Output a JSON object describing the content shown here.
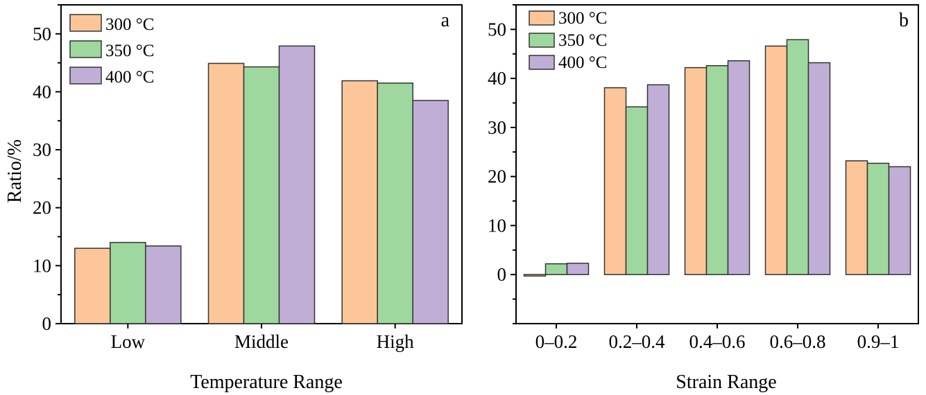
{
  "colors": {
    "s300": "#FDC699",
    "s350": "#9ED89E",
    "s400": "#C1AED6"
  },
  "chart_data": [
    {
      "type": "bar",
      "panel_label": "a",
      "xlabel": "Temperature Range",
      "ylabel": "Ratio/%",
      "categories": [
        "Low",
        "Middle",
        "High"
      ],
      "ylim": [
        0,
        55
      ],
      "yticks": [
        0,
        10,
        20,
        30,
        40,
        50
      ],
      "legend": "top-left",
      "grid": false,
      "series": [
        {
          "name": "300 °C",
          "values": [
            13.0,
            44.9,
            41.9
          ]
        },
        {
          "name": "350 °C",
          "values": [
            14.0,
            44.3,
            41.5
          ]
        },
        {
          "name": "400 °C",
          "values": [
            13.4,
            47.9,
            38.5
          ]
        }
      ]
    },
    {
      "type": "bar",
      "panel_label": "b",
      "xlabel": "Strain Range",
      "ylabel": "",
      "categories": [
        "0–0.2",
        "0.2–0.4",
        "0.4–0.6",
        "0.6–0.8",
        "0.9–1"
      ],
      "ylim": [
        -10,
        55
      ],
      "yticks": [
        0,
        10,
        20,
        30,
        40,
        50
      ],
      "legend": "top-left",
      "grid": false,
      "series": [
        {
          "name": "300 °C",
          "values": [
            -0.3,
            38.1,
            42.2,
            46.6,
            23.2
          ]
        },
        {
          "name": "350 °C",
          "values": [
            2.2,
            34.2,
            42.6,
            47.9,
            22.7
          ]
        },
        {
          "name": "400 °C",
          "values": [
            2.3,
            38.7,
            43.6,
            43.2,
            22.0
          ]
        }
      ]
    }
  ]
}
